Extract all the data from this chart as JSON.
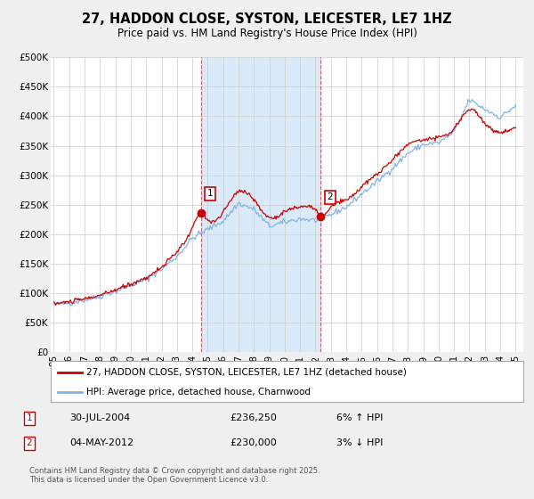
{
  "title": "27, HADDON CLOSE, SYSTON, LEICESTER, LE7 1HZ",
  "subtitle": "Price paid vs. HM Land Registry's House Price Index (HPI)",
  "ylim": [
    0,
    500000
  ],
  "yticks": [
    0,
    50000,
    100000,
    150000,
    200000,
    250000,
    300000,
    350000,
    400000,
    450000,
    500000
  ],
  "ytick_labels": [
    "£0",
    "£50K",
    "£100K",
    "£150K",
    "£200K",
    "£250K",
    "£300K",
    "£350K",
    "£400K",
    "£450K",
    "£500K"
  ],
  "xlim_start": 1994.8,
  "xlim_end": 2025.5,
  "xticks": [
    1995,
    1996,
    1997,
    1998,
    1999,
    2000,
    2001,
    2002,
    2003,
    2004,
    2005,
    2006,
    2007,
    2008,
    2009,
    2010,
    2011,
    2012,
    2013,
    2014,
    2015,
    2016,
    2017,
    2018,
    2019,
    2020,
    2021,
    2022,
    2023,
    2024,
    2025
  ],
  "xtick_labels": [
    "95",
    "96",
    "97",
    "98",
    "99",
    "00",
    "01",
    "02",
    "03",
    "04",
    "05",
    "06",
    "07",
    "08",
    "09",
    "10",
    "11",
    "12",
    "13",
    "14",
    "15",
    "16",
    "17",
    "18",
    "19",
    "20",
    "21",
    "22",
    "23",
    "24",
    "25"
  ],
  "background_color": "#f0f0f0",
  "plot_bg_color": "#ffffff",
  "grid_color": "#cccccc",
  "hpi_line_color": "#7fb3e8",
  "price_line_color": "#cc0000",
  "marker_color": "#cc0000",
  "vline_color": "#cc0000",
  "vband_color": "#daeaf8",
  "marker1_x": 2004.58,
  "marker1_y": 236250,
  "marker2_x": 2012.34,
  "marker2_y": 230000,
  "legend_label1": "27, HADDON CLOSE, SYSTON, LEICESTER, LE7 1HZ (detached house)",
  "legend_label2": "HPI: Average price, detached house, Charnwood",
  "note1_num": "1",
  "note1_date": "30-JUL-2004",
  "note1_price": "£236,250",
  "note1_hpi": "6% ↑ HPI",
  "note2_num": "2",
  "note2_date": "04-MAY-2012",
  "note2_price": "£230,000",
  "note2_hpi": "3% ↓ HPI",
  "footer": "Contains HM Land Registry data © Crown copyright and database right 2025.\nThis data is licensed under the Open Government Licence v3.0.",
  "title_fontsize": 10.5,
  "subtitle_fontsize": 8.5,
  "tick_fontsize": 7.5,
  "legend_fontsize": 7.5,
  "note_fontsize": 8,
  "footer_fontsize": 6
}
